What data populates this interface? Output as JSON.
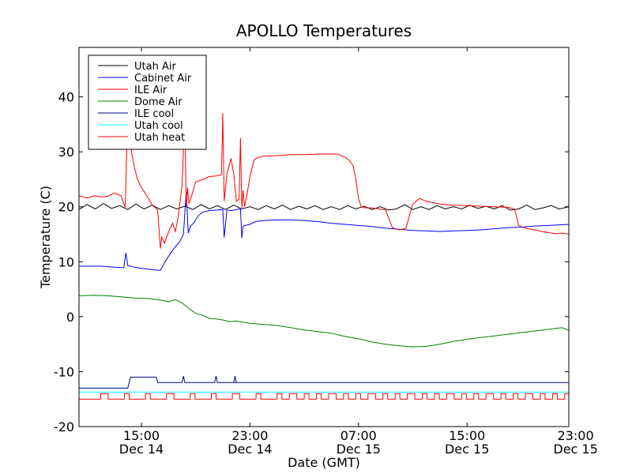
{
  "chart_data": {
    "type": "line",
    "title": "APOLLO Temperatures",
    "xlabel": "Date (GMT)",
    "ylabel": "Temperature (C)",
    "ylim": [
      -20,
      49
    ],
    "xlim": [
      10.4,
      46.5
    ],
    "grid": false,
    "legend_position": "top-left",
    "yticks": [
      {
        "value": -20,
        "label": "-20"
      },
      {
        "value": -10,
        "label": "-10"
      },
      {
        "value": 0,
        "label": "0"
      },
      {
        "value": 10,
        "label": "10"
      },
      {
        "value": 20,
        "label": "20"
      },
      {
        "value": 30,
        "label": "30"
      },
      {
        "value": 40,
        "label": "40"
      }
    ],
    "xticks": [
      {
        "value": 15,
        "label1": "15:00",
        "label2": "Dec 14"
      },
      {
        "value": 23,
        "label1": "23:00",
        "label2": "Dec 14"
      },
      {
        "value": 31,
        "label1": "07:00",
        "label2": "Dec 15"
      },
      {
        "value": 39,
        "label1": "15:00",
        "label2": "Dec 15"
      },
      {
        "value": 47,
        "label1": "23:00",
        "label2": "Dec 15"
      }
    ],
    "series": [
      {
        "name": "Utah Air",
        "color": "#000000",
        "x": [
          10.4,
          11.0,
          11.6,
          12.2,
          12.8,
          13.4,
          14.0,
          14.6,
          15.2,
          15.8,
          16.4,
          17.0,
          17.6,
          18.2,
          18.8,
          19.4,
          20.0,
          20.6,
          21.2,
          21.8,
          22.4,
          23.0,
          23.6,
          24.2,
          24.8,
          25.4,
          26.0,
          26.6,
          27.2,
          27.8,
          28.4,
          29.0,
          29.6,
          30.2,
          30.8,
          31.4,
          32.0,
          32.6,
          33.2,
          33.8,
          34.4,
          35.0,
          35.6,
          36.2,
          36.8,
          37.4,
          38.0,
          38.6,
          39.2,
          39.8,
          40.4,
          41.0,
          41.6,
          42.2,
          42.8,
          43.4,
          44.0,
          44.6,
          45.2,
          45.8,
          46.5
        ],
        "y": [
          19.5,
          20.4,
          19.6,
          20.6,
          19.7,
          20.2,
          19.5,
          20.5,
          19.6,
          20.3,
          19.5,
          20.2,
          19.6,
          20.1,
          19.5,
          20.4,
          19.6,
          20.2,
          19.5,
          20.3,
          19.6,
          20.0,
          19.5,
          20.2,
          19.6,
          20.3,
          19.5,
          20.1,
          19.6,
          20.2,
          19.5,
          20.0,
          19.5,
          20.2,
          19.6,
          20.1,
          19.5,
          20.0,
          19.4,
          19.6,
          20.4,
          19.5,
          20.0,
          19.5,
          20.2,
          19.6,
          20.0,
          19.6,
          20.3,
          19.7,
          20.1,
          19.6,
          20.2,
          19.4,
          19.6,
          20.3,
          19.5,
          19.8,
          20.2,
          19.6,
          20.0
        ]
      },
      {
        "name": "Cabinet Air",
        "color": "#0000ff",
        "x": [
          10.4,
          12.0,
          13.0,
          13.7,
          13.85,
          14.0,
          14.5,
          15.0,
          15.7,
          16.4,
          16.7,
          17.0,
          17.4,
          17.8,
          18.1,
          18.3,
          18.45,
          18.6,
          18.9,
          19.2,
          19.5,
          20.0,
          20.6,
          21.0,
          21.1,
          21.3,
          21.6,
          22.0,
          22.3,
          22.4,
          22.5,
          23.0,
          23.4,
          24.0,
          25.0,
          26.0,
          27.0,
          28.0,
          29.0,
          30.0,
          31.0,
          32.0,
          33.0,
          34.0,
          35.0,
          36.0,
          37.0,
          38.0,
          39.0,
          40.0,
          41.0,
          42.0,
          43.0,
          44.0,
          45.0,
          46.5
        ],
        "y": [
          9.2,
          9.2,
          9.0,
          8.9,
          11.6,
          9.3,
          9.0,
          8.8,
          8.6,
          8.4,
          9.8,
          11.0,
          12.4,
          13.6,
          15.0,
          22.8,
          15.2,
          16.4,
          17.2,
          18.4,
          19.0,
          19.3,
          19.4,
          19.5,
          14.4,
          19.4,
          19.3,
          19.5,
          19.6,
          14.3,
          16.5,
          16.8,
          17.3,
          17.5,
          17.6,
          17.6,
          17.5,
          17.3,
          17.0,
          16.8,
          16.6,
          16.4,
          16.1,
          15.9,
          15.7,
          15.6,
          15.5,
          15.6,
          15.7,
          15.8,
          16.0,
          16.2,
          16.3,
          16.5,
          16.6,
          16.8
        ]
      },
      {
        "name": "ILE Air",
        "color": "#ff0000",
        "x": [
          10.4,
          11.0,
          11.5,
          12.0,
          12.5,
          13.0,
          13.5,
          13.8,
          13.85,
          14.0,
          14.1,
          14.3,
          14.5,
          14.7,
          15.0,
          15.4,
          15.8,
          16.2,
          16.4,
          16.5,
          16.7,
          16.9,
          17.1,
          17.3,
          17.5,
          17.7,
          18.0,
          18.2,
          18.3,
          18.4,
          18.5,
          18.7,
          19.0,
          19.3,
          19.6,
          20.0,
          20.5,
          20.9,
          21.0,
          21.1,
          21.3,
          21.6,
          21.8,
          22.0,
          22.2,
          22.3,
          22.4,
          22.5,
          22.6,
          22.8,
          23.0,
          23.3,
          23.6,
          24.0,
          25.0,
          26.0,
          27.0,
          28.0,
          28.5,
          29.0,
          29.5,
          29.8,
          30.0,
          30.3,
          30.6,
          30.8,
          31.0,
          31.2,
          31.5,
          32.0,
          32.5,
          33.0,
          33.5,
          34.0,
          34.5,
          35.0,
          35.5,
          36.0,
          37.0,
          38.0,
          39.0,
          40.0,
          41.0,
          42.0,
          42.5,
          42.8,
          43.0,
          43.5,
          44.0,
          44.5,
          45.0,
          45.5,
          46.0,
          46.5
        ],
        "y": [
          22.0,
          21.6,
          22.0,
          21.8,
          21.9,
          22.5,
          22.0,
          19.9,
          24.0,
          38.0,
          33.0,
          29.5,
          27.0,
          25.0,
          23.5,
          22.0,
          20.3,
          19.4,
          12.4,
          14.5,
          13.4,
          14.8,
          16.0,
          17.0,
          15.5,
          18.0,
          24.0,
          37.0,
          20.0,
          23.5,
          20.6,
          22.0,
          24.5,
          24.8,
          25.0,
          25.5,
          25.6,
          25.8,
          37.0,
          21.0,
          26.0,
          28.8,
          26.0,
          21.0,
          21.4,
          32.5,
          19.8,
          23.0,
          20.0,
          22.5,
          25.5,
          28.5,
          29.0,
          29.2,
          29.3,
          29.5,
          29.5,
          29.6,
          29.6,
          29.6,
          29.6,
          29.2,
          29.0,
          28.5,
          27.5,
          25.0,
          21.5,
          20.0,
          19.8,
          19.8,
          19.6,
          19.4,
          16.2,
          15.8,
          16.1,
          20.5,
          21.5,
          21.0,
          20.5,
          20.3,
          20.2,
          20.1,
          20.0,
          19.9,
          19.6,
          16.6,
          16.4,
          16.0,
          15.8,
          15.5,
          15.3,
          15.1,
          15.2,
          15.0
        ]
      },
      {
        "name": "Dome Air",
        "color": "#008000",
        "x": [
          10.4,
          11.5,
          12.5,
          13.5,
          14.5,
          15.5,
          16.5,
          17.0,
          17.5,
          18.0,
          18.5,
          19.0,
          19.5,
          20.0,
          20.5,
          21.0,
          21.5,
          22.0,
          23.0,
          24.0,
          25.0,
          26.0,
          27.0,
          28.0,
          29.0,
          30.0,
          31.0,
          32.0,
          33.0,
          34.0,
          35.0,
          36.0,
          37.0,
          38.0,
          39.0,
          40.0,
          41.0,
          42.0,
          43.0,
          44.0,
          45.0,
          46.0,
          46.5
        ],
        "y": [
          3.8,
          3.9,
          3.8,
          3.6,
          3.4,
          3.3,
          3.0,
          2.7,
          3.1,
          2.5,
          1.5,
          0.6,
          0.3,
          -0.3,
          -0.4,
          -0.6,
          -0.9,
          -0.8,
          -1.2,
          -1.4,
          -1.6,
          -2.0,
          -2.4,
          -2.7,
          -3.0,
          -3.6,
          -4.0,
          -4.6,
          -5.0,
          -5.3,
          -5.5,
          -5.4,
          -5.0,
          -4.5,
          -4.1,
          -3.8,
          -3.5,
          -3.2,
          -2.9,
          -2.6,
          -2.3,
          -2.0,
          -2.5
        ]
      },
      {
        "name": "ILE cool",
        "color": "#00008b",
        "x": [
          10.4,
          13.0,
          14.0,
          14.1,
          14.2,
          15.0,
          16.1,
          16.2,
          18.0,
          18.1,
          18.2,
          20.0,
          20.4,
          20.5,
          20.6,
          22.0,
          21.8,
          21.9,
          22.0,
          46.5
        ],
        "y": [
          -13.0,
          -13.0,
          -13.0,
          -12.0,
          -11.0,
          -11.0,
          -11.0,
          -12.0,
          -12.0,
          -10.8,
          -12.0,
          -12.0,
          -12.0,
          -10.8,
          -12.0,
          -12.0,
          -12.0,
          -10.8,
          -12.0,
          -12.0
        ],
        "y_note": ""
      },
      {
        "name": "Utah cool",
        "color": "#00ffff",
        "x": [
          10.4,
          46.5
        ],
        "y": [
          -13.7,
          -13.7
        ]
      },
      {
        "name": "Utah heat",
        "color": "#ff0000",
        "x": [
          10.4,
          46.5
        ],
        "y": [
          -15.0,
          -14.0
        ],
        "pattern": "square-wave"
      }
    ]
  }
}
